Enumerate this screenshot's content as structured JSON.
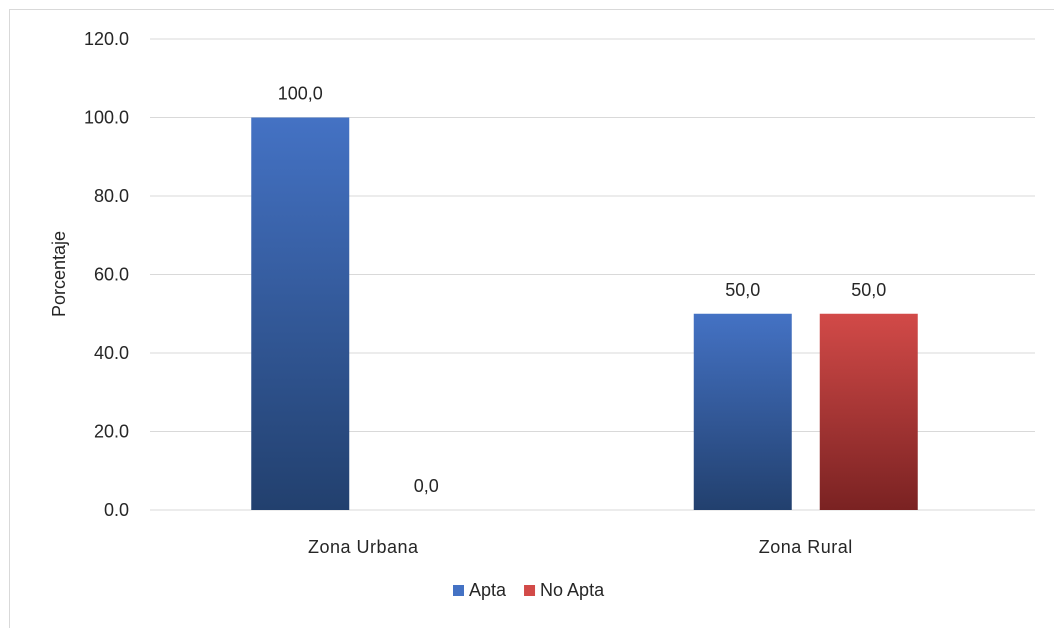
{
  "chart_data": {
    "type": "bar",
    "title": "",
    "xlabel": "",
    "ylabel": "Porcentaje",
    "categories": [
      "Zona Urbana",
      "Zona Rural"
    ],
    "ylim": [
      0,
      120
    ],
    "yticks": [
      0,
      20,
      40,
      60,
      80,
      100,
      120
    ],
    "ytick_labels": [
      "0.0",
      "20.0",
      "40.0",
      "60.0",
      "80.0",
      "100.0",
      "120.0"
    ],
    "grid": true,
    "legend_position": "bottom",
    "series": [
      {
        "name": "Apta",
        "values": [
          100,
          50
        ],
        "data_labels": [
          "100,0",
          "50,0"
        ],
        "color": "#4472c4",
        "color_dark": "#22406e"
      },
      {
        "name": "No Apta",
        "values": [
          0,
          50
        ],
        "data_labels": [
          "0,0",
          "50,0"
        ],
        "color": "#d24a48",
        "color_dark": "#7a2222"
      }
    ]
  }
}
